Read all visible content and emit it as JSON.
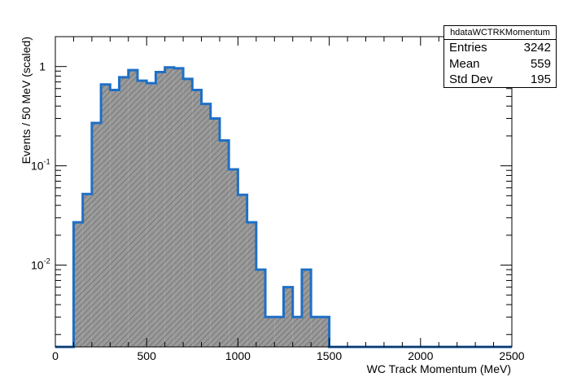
{
  "chart_data": {
    "type": "histogram",
    "xlabel": "WC Track Momentum (MeV)",
    "ylabel": "Events / 50 MeV (scaled)",
    "xlim": [
      0,
      2500
    ],
    "ylim": [
      0.0015,
      2.0
    ],
    "yscale": "log",
    "bin_width": 50,
    "x_ticks": [
      "0",
      "500",
      "1000",
      "1500",
      "2000",
      "2500"
    ],
    "y_ticks": [
      {
        "base": "10",
        "exp": "-2",
        "value": 0.01
      },
      {
        "base": "10",
        "exp": "-1",
        "value": 0.1
      },
      {
        "base": "1",
        "exp": "",
        "value": 1
      }
    ],
    "bin_edges_start": 100,
    "values": [
      0.027,
      0.052,
      0.27,
      0.66,
      0.58,
      0.78,
      0.92,
      0.72,
      0.68,
      0.88,
      0.98,
      0.96,
      0.75,
      0.58,
      0.42,
      0.3,
      0.18,
      0.092,
      0.051,
      0.027,
      0.009,
      0.003,
      0.003,
      0.006,
      0.003,
      0.009,
      0.003,
      0.003
    ],
    "line_color": "#1f6fc5",
    "fill_color": "#9a9a9a",
    "grid": false
  },
  "stats_box": {
    "title": "hdataWCTRKMomentum",
    "rows": [
      {
        "label": "Entries",
        "value": "3242"
      },
      {
        "label": "Mean",
        "value": "559"
      },
      {
        "label": "Std Dev",
        "value": "195"
      }
    ]
  }
}
